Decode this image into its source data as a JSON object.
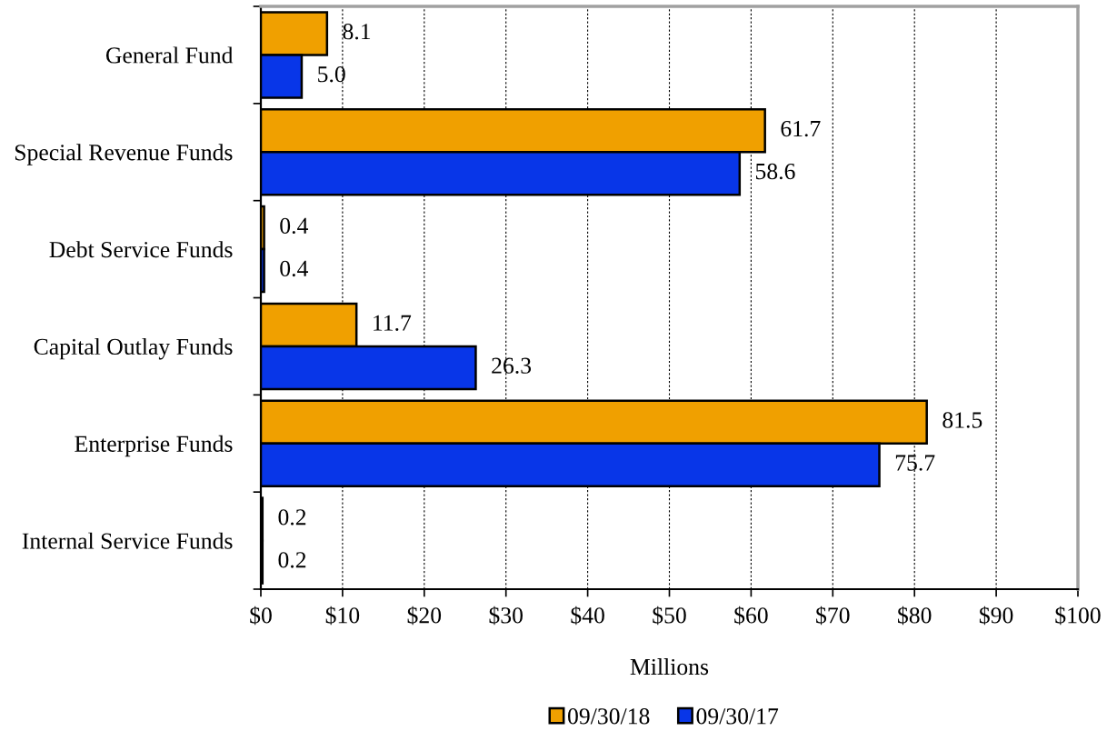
{
  "chart_data": {
    "type": "bar",
    "orientation": "horizontal",
    "categories": [
      "General Fund",
      "Special Revenue Funds",
      "Debt Service Funds",
      "Capital Outlay Funds",
      "Enterprise Funds",
      "Internal Service Funds"
    ],
    "series": [
      {
        "name": "09/30/18",
        "color": "#f0a000",
        "values": [
          8.1,
          61.7,
          0.4,
          11.7,
          81.5,
          0.2
        ],
        "value_labels": [
          "8.1",
          "61.7",
          "0.4",
          "11.7",
          "81.5",
          "0.2"
        ]
      },
      {
        "name": "09/30/17",
        "color": "#0836e8",
        "values": [
          5.0,
          58.6,
          0.4,
          26.3,
          75.7,
          0.2
        ],
        "value_labels": [
          "5.0",
          "58.6",
          "0.4",
          "26.3",
          "75.7",
          "0.2"
        ]
      }
    ],
    "xlabel": "Millions",
    "xlim": [
      0,
      100
    ],
    "xticks": [
      {
        "value": 0,
        "label": "$0"
      },
      {
        "value": 10,
        "label": "$10"
      },
      {
        "value": 20,
        "label": "$20"
      },
      {
        "value": 30,
        "label": "$30"
      },
      {
        "value": 40,
        "label": "$40"
      },
      {
        "value": 50,
        "label": "$50"
      },
      {
        "value": 60,
        "label": "$60"
      },
      {
        "value": 70,
        "label": "$70"
      },
      {
        "value": 80,
        "label": "$80"
      },
      {
        "value": 90,
        "label": "$90"
      },
      {
        "value": 100,
        "label": "$100"
      }
    ],
    "grid": "x",
    "legend": "bottom"
  }
}
